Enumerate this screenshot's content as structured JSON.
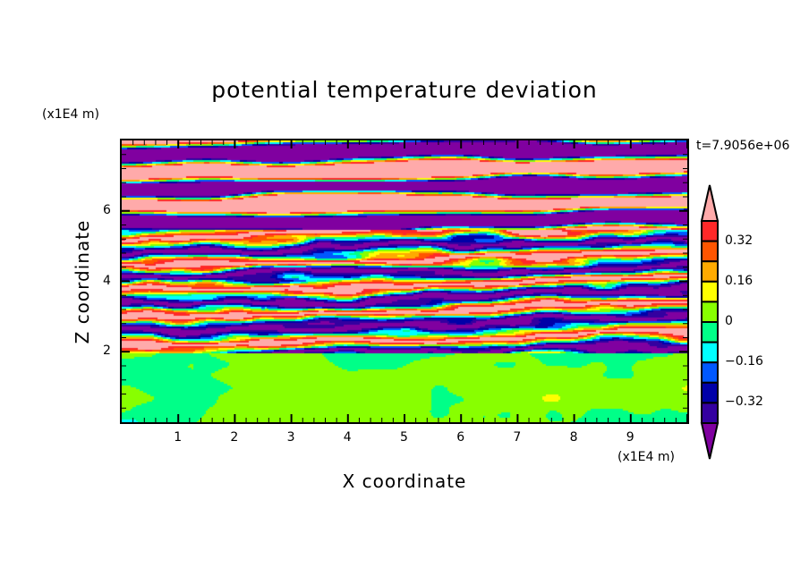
{
  "chart_data": {
    "type": "heatmap",
    "subtype": "filled-contour",
    "title": "potential temperature deviation",
    "xlabel": "X coordinate",
    "ylabel": "Z coordinate",
    "x_unit": "(x1E4 m)",
    "y_unit": "(x1E4 m)",
    "time_label": "t=7.9056e+06",
    "xlim": [
      0,
      10
    ],
    "ylim": [
      0,
      8
    ],
    "xticks": [
      "1",
      "2",
      "3",
      "4",
      "5",
      "6",
      "7",
      "8",
      "9"
    ],
    "yticks": [
      "2",
      "4",
      "6"
    ],
    "x_tick_values": [
      1,
      2,
      3,
      4,
      5,
      6,
      7,
      8,
      9
    ],
    "y_tick_values": [
      2,
      4,
      6
    ],
    "levels": [
      -0.4,
      -0.32,
      -0.24,
      -0.16,
      -0.08,
      0,
      0.08,
      0.16,
      0.24,
      0.32,
      0.4
    ],
    "colorbar_labels": [
      "0.32",
      "0.16",
      "0",
      "-0.16",
      "-0.32"
    ],
    "colorbar_label_values": [
      0.32,
      0.16,
      0,
      -0.16,
      -0.32
    ],
    "colors": {
      "under": "#8000a0",
      "bins": [
        "#3400a0",
        "#0000a8",
        "#0058ff",
        "#00ffff",
        "#00ff88",
        "#88ff00",
        "#ffff00",
        "#ffaa00",
        "#ff5500",
        "#ff2828"
      ],
      "over": "#ffaaaa"
    },
    "field_description_regions": [
      {
        "z_range": [
          0,
          2
        ],
        "values": "near 0 (between -0.08 and 0.08)"
      },
      {
        "z_range": [
          2,
          5.5
        ],
        "values": "turbulent layers, -0.4 to 0.4"
      },
      {
        "z_range": [
          5.5,
          8
        ],
        "values": "alternating bands beyond +/-0.4"
      }
    ]
  }
}
